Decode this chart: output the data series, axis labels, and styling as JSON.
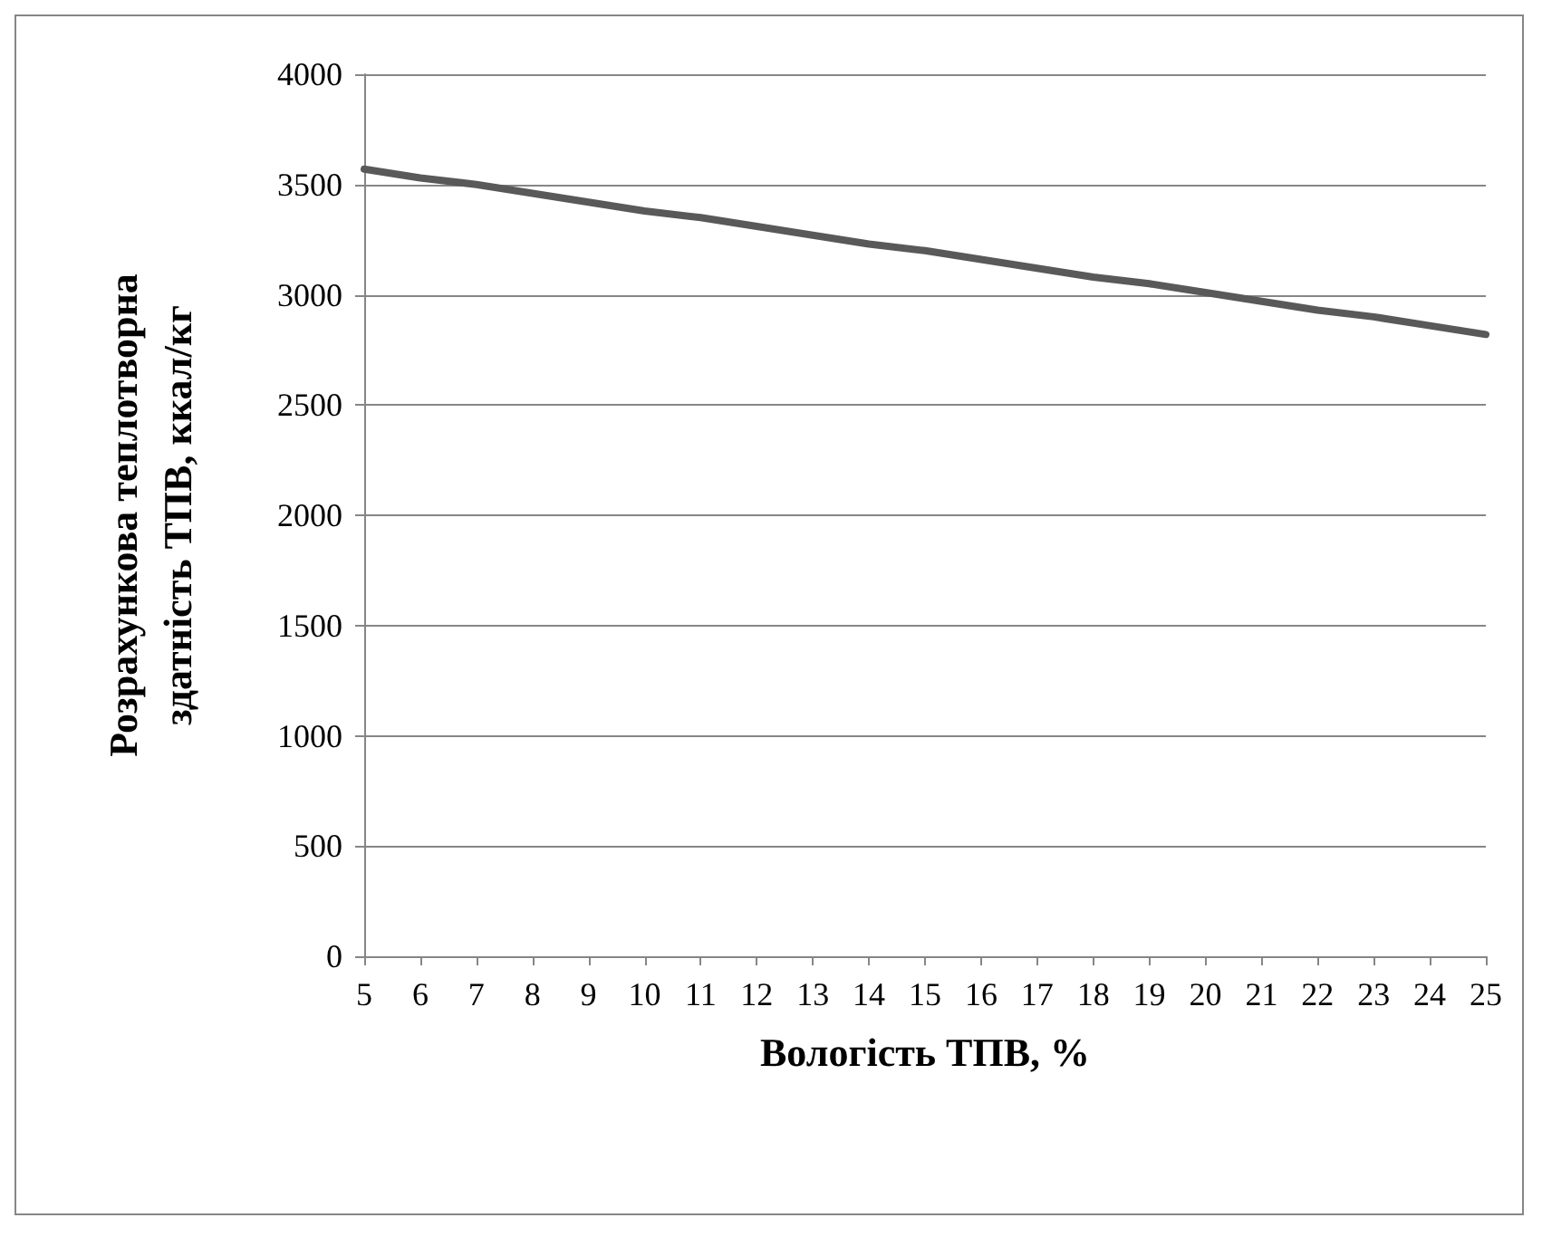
{
  "chart_data": {
    "type": "line",
    "xlabel": "Вологість ТПВ, %",
    "ylabel": "Розрахункова теплотворна\nздатність ТПВ, ккал/кг",
    "categories": [
      "5",
      "6",
      "7",
      "8",
      "9",
      "10",
      "11",
      "12",
      "13",
      "14",
      "15",
      "16",
      "17",
      "18",
      "19",
      "20",
      "21",
      "22",
      "23",
      "24",
      "25"
    ],
    "values": [
      3570,
      3530,
      3500,
      3460,
      3420,
      3380,
      3350,
      3310,
      3270,
      3230,
      3200,
      3160,
      3120,
      3080,
      3050,
      3010,
      2970,
      2930,
      2900,
      2860,
      2820
    ],
    "color": "#595959",
    "ylim": [
      0,
      4000
    ],
    "yticks": [
      0,
      500,
      1000,
      1500,
      2000,
      2500,
      3000,
      3500,
      4000
    ],
    "grid": "y",
    "marker": "none",
    "line_style": "solid"
  }
}
